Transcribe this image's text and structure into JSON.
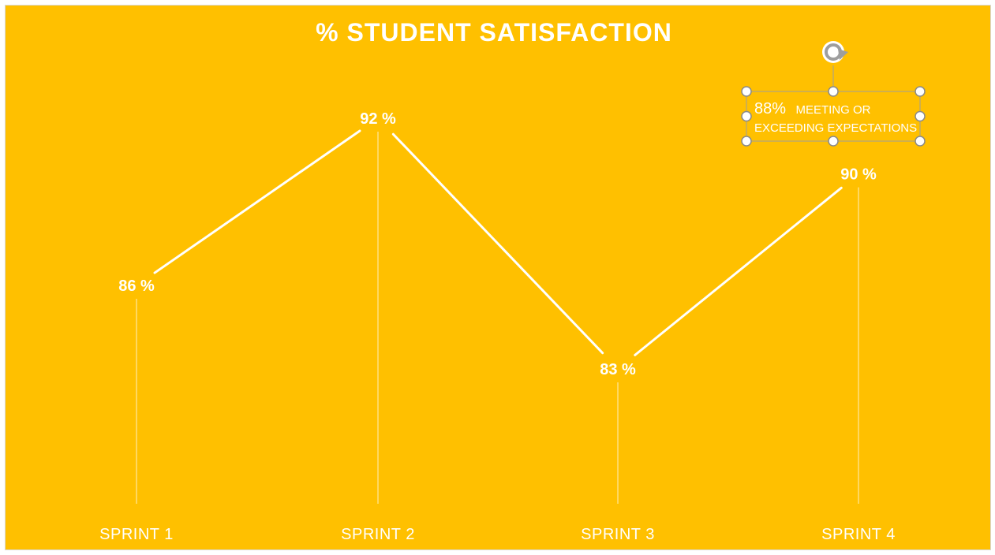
{
  "chart_data": {
    "type": "line",
    "title": "% STUDENT SATISFACTION",
    "categories": [
      "SPRINT 1",
      "SPRINT 2",
      "SPRINT 3",
      "SPRINT 4"
    ],
    "values": [
      86,
      92,
      83,
      90
    ],
    "data_labels": [
      "86 %",
      "92 %",
      "83 %",
      "90 %"
    ],
    "background_color": "#FFC000",
    "line_color": "#FFFFFF",
    "grid": false,
    "legend": "none"
  },
  "callout": {
    "value": "88%",
    "line1": "MEETING OR",
    "line2": "EXCEEDING EXPECTATIONS"
  },
  "icons": {
    "rotate_handle": "rotate-icon"
  }
}
